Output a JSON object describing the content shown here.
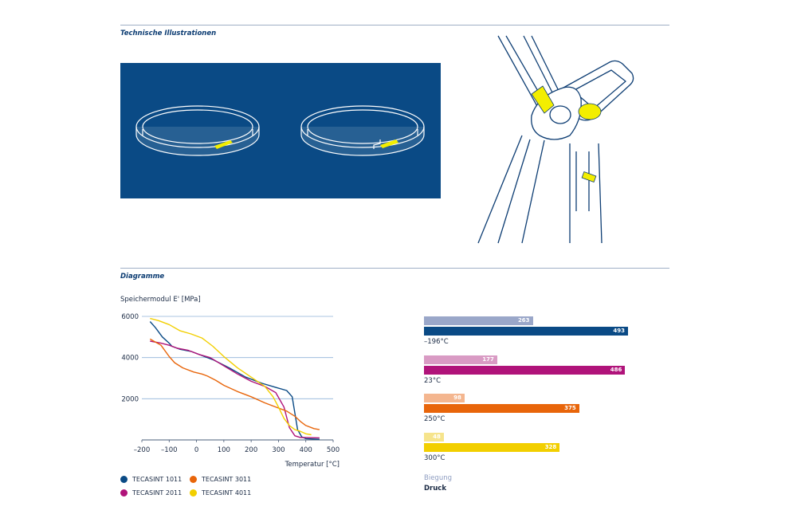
{
  "sections": {
    "illustrations_title": "Technische Illustrationen",
    "diagrams_title": "Diagramme"
  },
  "colors": {
    "tecasint_1011": "#0a4a85",
    "tecasint_2011": "#b0137a",
    "tecasint_3011": "#e8650a",
    "tecasint_4011": "#f2cf00",
    "biegung_1011": "#9aa7c9",
    "biegung_2011": "#d99bc4",
    "biegung_3011": "#f4b68f",
    "biegung_4011": "#f6e48c",
    "illustration_accent": "#f3ee00"
  },
  "chart_data": [
    {
      "type": "line",
      "title": "",
      "ylabel": "Speichermodul E' [MPa]",
      "xlabel": "Temperatur [°C]",
      "xlim": [
        -200,
        500
      ],
      "ylim": [
        0,
        6000
      ],
      "x_ticks": [
        -200,
        -100,
        0,
        100,
        200,
        300,
        400,
        500
      ],
      "x_tick_labels": [
        "–200",
        "–100",
        "0",
        "100",
        "200",
        "300",
        "400",
        "500"
      ],
      "y_ticks": [
        2000,
        4000,
        6000
      ],
      "y_tick_labels": [
        "2000",
        "4000",
        "6000"
      ],
      "grid": "horizontal",
      "legend_position": "bottom",
      "series": [
        {
          "name": "TECASINT 1011",
          "color_key": "tecasint_1011",
          "points": [
            [
              -170,
              5750
            ],
            [
              -150,
              5450
            ],
            [
              -125,
              5000
            ],
            [
              -100,
              4700
            ],
            [
              -90,
              4550
            ],
            [
              -60,
              4400
            ],
            [
              -20,
              4300
            ],
            [
              20,
              4100
            ],
            [
              60,
              3900
            ],
            [
              120,
              3500
            ],
            [
              180,
              3050
            ],
            [
              240,
              2750
            ],
            [
              290,
              2550
            ],
            [
              330,
              2400
            ],
            [
              350,
              2100
            ],
            [
              360,
              1300
            ],
            [
              370,
              500
            ],
            [
              385,
              150
            ],
            [
              400,
              60
            ],
            [
              450,
              30
            ]
          ]
        },
        {
          "name": "TECASINT 2011",
          "color_key": "tecasint_2011",
          "points": [
            [
              -170,
              4800
            ],
            [
              -130,
              4700
            ],
            [
              -100,
              4600
            ],
            [
              -70,
              4450
            ],
            [
              -30,
              4350
            ],
            [
              10,
              4150
            ],
            [
              50,
              4000
            ],
            [
              100,
              3600
            ],
            [
              150,
              3200
            ],
            [
              200,
              2850
            ],
            [
              250,
              2600
            ],
            [
              290,
              2300
            ],
            [
              320,
              1600
            ],
            [
              340,
              600
            ],
            [
              360,
              200
            ],
            [
              380,
              120
            ],
            [
              450,
              100
            ]
          ]
        },
        {
          "name": "TECASINT 3011",
          "color_key": "tecasint_3011",
          "points": [
            [
              -170,
              4900
            ],
            [
              -130,
              4600
            ],
            [
              -100,
              4050
            ],
            [
              -80,
              3750
            ],
            [
              -50,
              3500
            ],
            [
              -10,
              3300
            ],
            [
              20,
              3200
            ],
            [
              40,
              3100
            ],
            [
              70,
              2900
            ],
            [
              100,
              2650
            ],
            [
              150,
              2350
            ],
            [
              200,
              2100
            ],
            [
              250,
              1800
            ],
            [
              300,
              1550
            ],
            [
              330,
              1400
            ],
            [
              360,
              1150
            ],
            [
              380,
              900
            ],
            [
              400,
              700
            ],
            [
              430,
              550
            ],
            [
              450,
              500
            ]
          ]
        },
        {
          "name": "TECASINT 4011",
          "color_key": "tecasint_4011",
          "points": [
            [
              -170,
              5900
            ],
            [
              -140,
              5800
            ],
            [
              -100,
              5600
            ],
            [
              -60,
              5300
            ],
            [
              -20,
              5150
            ],
            [
              20,
              4950
            ],
            [
              60,
              4550
            ],
            [
              100,
              4050
            ],
            [
              150,
              3500
            ],
            [
              200,
              3050
            ],
            [
              250,
              2600
            ],
            [
              280,
              2100
            ],
            [
              300,
              1600
            ],
            [
              320,
              1050
            ],
            [
              340,
              700
            ],
            [
              360,
              500
            ],
            [
              380,
              420
            ],
            [
              400,
              300
            ],
            [
              420,
              250
            ]
          ]
        }
      ]
    },
    {
      "type": "bar",
      "orientation": "horizontal",
      "title": "",
      "categories": [
        "–196°C",
        "23°C",
        "250°C",
        "300°C"
      ],
      "xlim": [
        0,
        510
      ],
      "series": [
        {
          "name": "Biegung",
          "values": [
            263,
            177,
            98,
            48
          ]
        },
        {
          "name": "Druck",
          "values": [
            493,
            486,
            375,
            328
          ]
        }
      ],
      "value_labels": {
        "biegung": [
          "263",
          "177",
          "98",
          "48"
        ],
        "druck": [
          "493",
          "486",
          "375",
          "328"
        ]
      },
      "legend_position": "bottom-left"
    }
  ]
}
